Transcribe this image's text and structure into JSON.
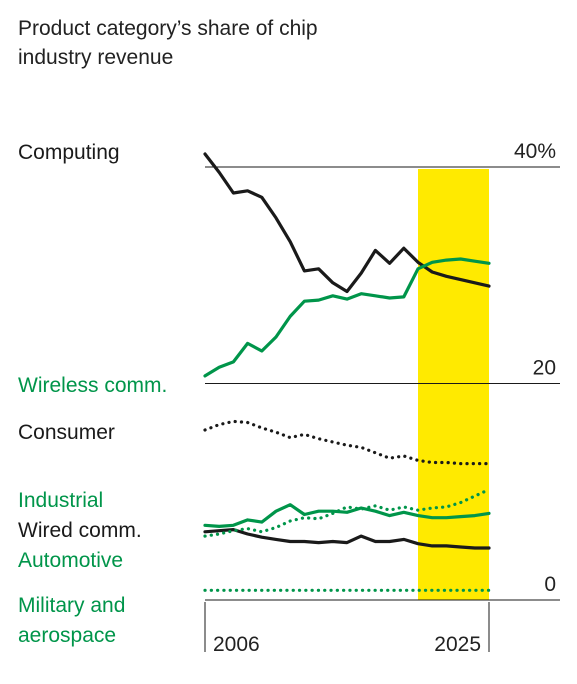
{
  "chart_data": {
    "type": "line",
    "title": "Product category’s share of chip industry revenue",
    "xlabel": "",
    "ylabel": "",
    "x": [
      2006,
      2007,
      2008,
      2009,
      2010,
      2011,
      2012,
      2013,
      2014,
      2015,
      2016,
      2017,
      2018,
      2019,
      2020,
      2021,
      2022,
      2023,
      2024,
      2025,
      2026
    ],
    "xlim": [
      2006,
      2026
    ],
    "x_tick_labels": [
      "2006",
      "2025"
    ],
    "ylim": [
      0,
      40
    ],
    "y_tick_labels": [
      "40%",
      "20",
      "0"
    ],
    "highlight": {
      "from": 2021,
      "to": 2026,
      "color": "#ffea00"
    },
    "colors": {
      "black": "#1a1a1a",
      "green": "#00954a"
    },
    "series": [
      {
        "name": "Computing",
        "color": "#1a1a1a",
        "dash": "solid",
        "values": [
          41.2,
          39.5,
          37.6,
          37.8,
          37.2,
          35.3,
          33.1,
          30.4,
          30.6,
          29.3,
          28.5,
          30.2,
          32.3,
          31.1,
          32.5,
          31.2,
          30.3,
          29.9,
          29.6,
          29.3,
          29.0
        ]
      },
      {
        "name": "Wireless comm.",
        "color": "#00954a",
        "dash": "solid",
        "values": [
          20.7,
          21.5,
          22.0,
          23.7,
          23.0,
          24.3,
          26.2,
          27.6,
          27.7,
          28.1,
          27.8,
          28.3,
          28.1,
          27.9,
          28.0,
          30.6,
          31.2,
          31.4,
          31.5,
          31.3,
          31.1
        ]
      },
      {
        "name": "Consumer",
        "color": "#1a1a1a",
        "dash": "dotted",
        "values": [
          15.7,
          16.2,
          16.5,
          16.4,
          15.9,
          15.5,
          15.0,
          15.3,
          14.9,
          14.6,
          14.3,
          14.1,
          13.6,
          13.1,
          13.3,
          12.9,
          12.7,
          12.7,
          12.6,
          12.6,
          12.6
        ]
      },
      {
        "name": "Industrial",
        "color": "#00954a",
        "dash": "solid",
        "values": [
          6.9,
          6.8,
          6.9,
          7.4,
          7.2,
          8.2,
          8.8,
          7.9,
          8.2,
          8.2,
          8.1,
          8.5,
          8.2,
          7.8,
          8.1,
          7.8,
          7.6,
          7.6,
          7.7,
          7.8,
          8.0
        ]
      },
      {
        "name": "Wired comm.",
        "color": "#1a1a1a",
        "dash": "solid",
        "values": [
          6.3,
          6.4,
          6.5,
          6.1,
          5.8,
          5.6,
          5.4,
          5.4,
          5.3,
          5.4,
          5.3,
          5.9,
          5.4,
          5.4,
          5.6,
          5.2,
          5.0,
          5.0,
          4.9,
          4.8,
          4.8
        ]
      },
      {
        "name": "Automotive",
        "color": "#00954a",
        "dash": "dotted",
        "values": [
          5.9,
          6.1,
          6.4,
          6.6,
          6.3,
          6.7,
          7.3,
          7.6,
          7.5,
          8.0,
          8.6,
          8.4,
          8.7,
          8.3,
          8.6,
          8.3,
          8.5,
          8.6,
          9.0,
          9.6,
          10.2
        ]
      },
      {
        "name": "Military and aerospace",
        "color": "#00954a",
        "dash": "dotted",
        "values": [
          0.9,
          0.9,
          0.9,
          0.9,
          0.9,
          0.9,
          0.9,
          0.9,
          0.9,
          0.9,
          0.9,
          0.9,
          0.9,
          0.9,
          0.9,
          0.9,
          0.9,
          0.9,
          0.9,
          0.9,
          0.9
        ]
      }
    ]
  }
}
